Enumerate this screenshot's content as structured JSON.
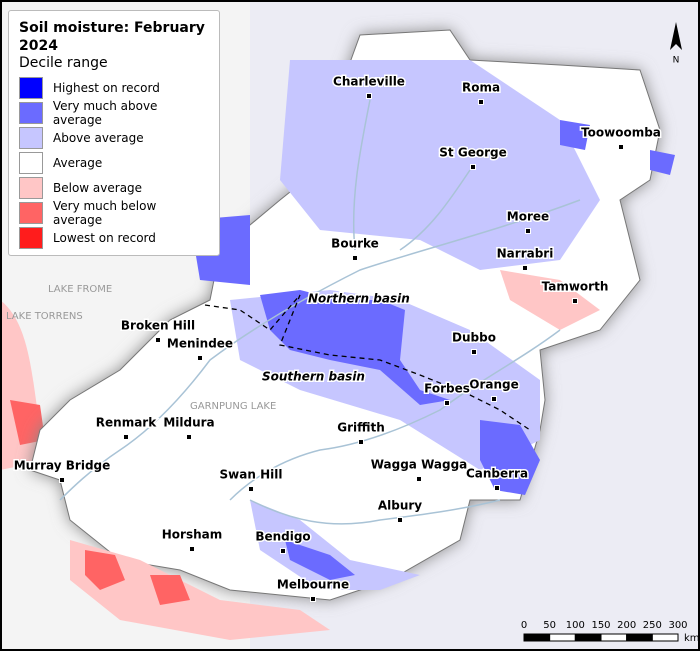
{
  "title": "Soil moisture: February 2024",
  "legend": {
    "subtitle": "Decile range",
    "items": [
      {
        "label": "Highest on record",
        "color": "#0000ff"
      },
      {
        "label": "Very much above average",
        "color": "#6b6bff"
      },
      {
        "label": "Above average",
        "color": "#c6c6ff"
      },
      {
        "label": "Average",
        "color": "#ffffff"
      },
      {
        "label": "Below average",
        "color": "#ffc6c6"
      },
      {
        "label": "Very much below average",
        "color": "#ff6464"
      },
      {
        "label": "Lowest on record",
        "color": "#ff1c1c"
      }
    ]
  },
  "towns": [
    "Charleville",
    "Roma",
    "Toowoomba",
    "St George",
    "Moree",
    "Bourke",
    "Narrabri",
    "Tamworth",
    "Broken Hill",
    "Menindee",
    "Dubbo",
    "Orange",
    "Forbes",
    "Renmark",
    "Mildura",
    "Griffith",
    "Wagga Wagga",
    "Canberra",
    "Murray Bridge",
    "Swan Hill",
    "Albury",
    "Horsham",
    "Bendigo",
    "Melbourne"
  ],
  "regions": [
    "Northern basin",
    "Southern basin"
  ],
  "lakes": [
    "LAKE FROME",
    "LAKE TORRENS",
    "GARNPUNG LAKE"
  ],
  "north": "N",
  "scale": {
    "ticks": [
      0,
      50,
      100,
      150,
      200,
      250,
      300
    ],
    "unit": "km"
  }
}
